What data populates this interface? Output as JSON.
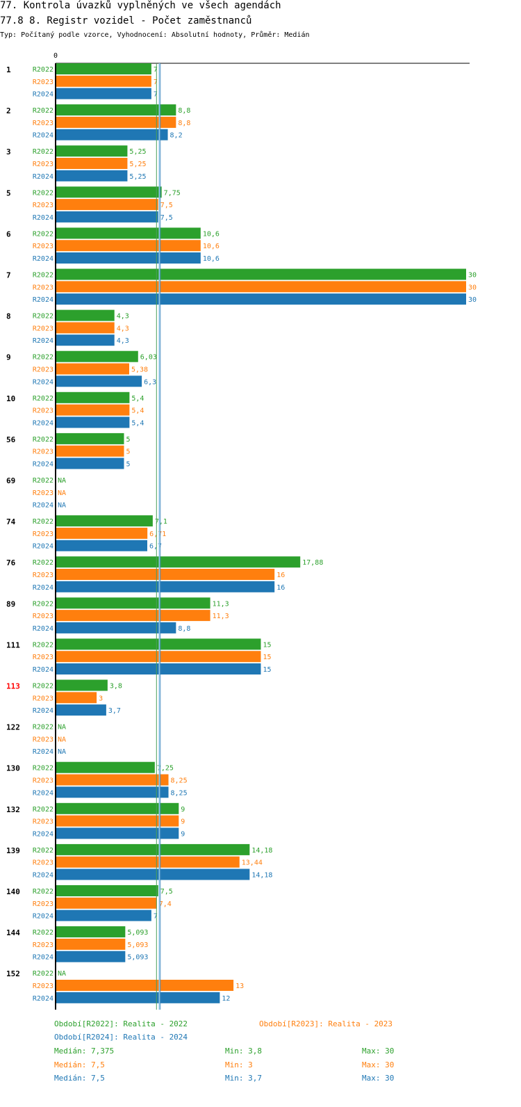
{
  "header": {
    "title_line1": "77. Kontrola úvazků vyplněných ve všech agendách",
    "title_line2": "77.8 8. Registr vozidel - Počet zaměstnanců",
    "subtitle": "Typ: Počítaný podle vzorce, Vyhodnocení: Absolutní hodnoty, Průměr: Medián"
  },
  "chart_data": {
    "type": "bar",
    "orientation": "horizontal",
    "x_tick_label": "0",
    "xlim": [
      0,
      30
    ],
    "reference_line": 7.375,
    "reference_lines_per_series": [
      7.375,
      7.5,
      7.5
    ],
    "series": [
      {
        "name": "R2022",
        "color": "#2ca02c"
      },
      {
        "name": "R2023",
        "color": "#ff7f0e"
      },
      {
        "name": "R2024",
        "color": "#1f77b4"
      }
    ],
    "groups": [
      {
        "label": "1",
        "highlight": false,
        "values": [
          7,
          7,
          7
        ],
        "labels": [
          "7",
          "7",
          "7"
        ]
      },
      {
        "label": "2",
        "highlight": false,
        "values": [
          8.8,
          8.8,
          8.2
        ],
        "labels": [
          "8,8",
          "8,8",
          "8,2"
        ]
      },
      {
        "label": "3",
        "highlight": false,
        "values": [
          5.25,
          5.25,
          5.25
        ],
        "labels": [
          "5,25",
          "5,25",
          "5,25"
        ]
      },
      {
        "label": "5",
        "highlight": false,
        "values": [
          7.75,
          7.5,
          7.5
        ],
        "labels": [
          "7,75",
          "7,5",
          "7,5"
        ]
      },
      {
        "label": "6",
        "highlight": false,
        "values": [
          10.6,
          10.6,
          10.6
        ],
        "labels": [
          "10,6",
          "10,6",
          "10,6"
        ]
      },
      {
        "label": "7",
        "highlight": false,
        "values": [
          30,
          30,
          30
        ],
        "labels": [
          "30",
          "30",
          "30"
        ]
      },
      {
        "label": "8",
        "highlight": false,
        "values": [
          4.3,
          4.3,
          4.3
        ],
        "labels": [
          "4,3",
          "4,3",
          "4,3"
        ]
      },
      {
        "label": "9",
        "highlight": false,
        "values": [
          6.03,
          5.38,
          6.3
        ],
        "labels": [
          "6,03",
          "5,38",
          "6,3"
        ]
      },
      {
        "label": "10",
        "highlight": false,
        "values": [
          5.4,
          5.4,
          5.4
        ],
        "labels": [
          "5,4",
          "5,4",
          "5,4"
        ]
      },
      {
        "label": "56",
        "highlight": false,
        "values": [
          5,
          5,
          5
        ],
        "labels": [
          "5",
          "5",
          "5"
        ]
      },
      {
        "label": "69",
        "highlight": false,
        "values": [
          null,
          null,
          null
        ],
        "labels": [
          "NA",
          "NA",
          "NA"
        ]
      },
      {
        "label": "74",
        "highlight": false,
        "values": [
          7.1,
          6.71,
          6.7
        ],
        "labels": [
          "7,1",
          "6,71",
          "6,7"
        ]
      },
      {
        "label": "76",
        "highlight": false,
        "values": [
          17.88,
          16,
          16
        ],
        "labels": [
          "17,88",
          "16",
          "16"
        ]
      },
      {
        "label": "89",
        "highlight": false,
        "values": [
          11.3,
          11.3,
          8.8
        ],
        "labels": [
          "11,3",
          "11,3",
          "8,8"
        ]
      },
      {
        "label": "111",
        "highlight": false,
        "values": [
          15,
          15,
          15
        ],
        "labels": [
          "15",
          "15",
          "15"
        ]
      },
      {
        "label": "113",
        "highlight": true,
        "values": [
          3.8,
          3,
          3.7
        ],
        "labels": [
          "3,8",
          "3",
          "3,7"
        ]
      },
      {
        "label": "122",
        "highlight": false,
        "values": [
          null,
          null,
          null
        ],
        "labels": [
          "NA",
          "NA",
          "NA"
        ]
      },
      {
        "label": "130",
        "highlight": false,
        "values": [
          7.25,
          8.25,
          8.25
        ],
        "labels": [
          "7,25",
          "8,25",
          "8,25"
        ]
      },
      {
        "label": "132",
        "highlight": false,
        "values": [
          9,
          9,
          9
        ],
        "labels": [
          "9",
          "9",
          "9"
        ]
      },
      {
        "label": "139",
        "highlight": false,
        "values": [
          14.18,
          13.44,
          14.18
        ],
        "labels": [
          "14,18",
          "13,44",
          "14,18"
        ]
      },
      {
        "label": "140",
        "highlight": false,
        "values": [
          7.5,
          7.4,
          7
        ],
        "labels": [
          "7,5",
          "7,4",
          "7"
        ]
      },
      {
        "label": "144",
        "highlight": false,
        "values": [
          5.093,
          5.093,
          5.093
        ],
        "labels": [
          "5,093",
          "5,093",
          "5,093"
        ]
      },
      {
        "label": "152",
        "highlight": false,
        "values": [
          null,
          13,
          12
        ],
        "labels": [
          "NA",
          "13",
          "12"
        ]
      }
    ]
  },
  "legend": {
    "periods": [
      "Období[R2022]: Realita - 2022",
      "Období[R2023]: Realita - 2023",
      "Období[R2024]: Realita - 2024"
    ],
    "stats": [
      {
        "median": "Medián: 7,375",
        "min": "Min: 3,8",
        "max": "Max: 30"
      },
      {
        "median": "Medián: 7,5",
        "min": "Min: 3",
        "max": "Max: 30"
      },
      {
        "median": "Medián: 7,5",
        "min": "Min: 3,7",
        "max": "Max: 30"
      }
    ]
  },
  "colors": {
    "r2022": "#2ca02c",
    "r2023": "#ff7f0e",
    "r2024": "#1f77b4",
    "highlight": "#ff0000",
    "axis": "#000000"
  }
}
